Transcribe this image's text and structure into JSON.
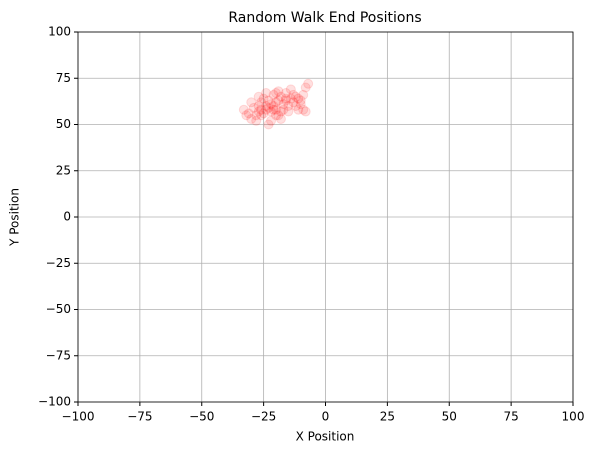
{
  "chart_data": {
    "type": "scatter",
    "title": "Random Walk End Positions",
    "xlabel": "X Position",
    "ylabel": "Y Position",
    "series": [
      {
        "color": "#ff0000",
        "alpha": 0.12,
        "x": [
          -33,
          -31,
          -30,
          -28,
          -27,
          -26,
          -25,
          -24,
          -23,
          -22,
          -21,
          -20,
          -19,
          -18,
          -17,
          -16,
          -15,
          -14,
          -13,
          -12,
          -11,
          -10,
          -9,
          -8,
          -7,
          -8,
          -19,
          -21,
          -24,
          -27,
          -29,
          -26,
          -22,
          -20,
          -18,
          -16,
          -14,
          -12,
          -23,
          -25,
          -28,
          -17,
          -15,
          -13,
          -11,
          -10,
          -20,
          -22,
          -24,
          -26,
          -30,
          -32,
          -19,
          -21,
          -9,
          -27,
          -23,
          -18,
          -16,
          -20
        ],
        "y": [
          58,
          56,
          53,
          55,
          60,
          62,
          64,
          58,
          50,
          57,
          60,
          62,
          55,
          53,
          58,
          63,
          60,
          64,
          62,
          65,
          58,
          63,
          66,
          70,
          72,
          57,
          68,
          66,
          67,
          65,
          59,
          55,
          52,
          58,
          65,
          67,
          69,
          60,
          63,
          56,
          52,
          61,
          57,
          66,
          64,
          61,
          55,
          61,
          60,
          58,
          62,
          55,
          63,
          58,
          58,
          57,
          59,
          57,
          64,
          67
        ]
      }
    ],
    "xlim": [
      -100,
      100
    ],
    "ylim": [
      -100,
      100
    ],
    "xticks": [
      {
        "value": -100,
        "label": "−100"
      },
      {
        "value": -75,
        "label": "−75"
      },
      {
        "value": -50,
        "label": "−50"
      },
      {
        "value": -25,
        "label": "−25"
      },
      0,
      25,
      50,
      75,
      100
    ],
    "yticks": [
      {
        "value": -100,
        "label": "−100"
      },
      {
        "value": -75,
        "label": "−75"
      },
      {
        "value": -50,
        "label": "−50"
      },
      {
        "value": -25,
        "label": "−25"
      },
      0,
      25,
      50,
      75,
      100
    ],
    "grid": true
  }
}
